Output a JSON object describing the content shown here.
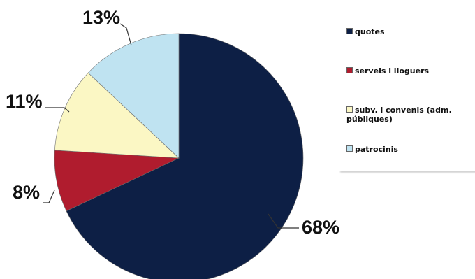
{
  "chart_data": {
    "type": "pie",
    "categories": [
      "quotes",
      "serveis i lloguers",
      "subv. i convenis (adm. públiques)",
      "patrocinis"
    ],
    "values": [
      68,
      8,
      11,
      13
    ],
    "labels": [
      "68%",
      "8%",
      "11%",
      "13%"
    ],
    "colors": [
      "#0d1f45",
      "#b01c2e",
      "#fbf7c4",
      "#bfe3f1"
    ],
    "legend": "right"
  },
  "legend": {
    "items": [
      {
        "label": "quotes",
        "color": "#0d1f45"
      },
      {
        "label": "serveis i lloguers",
        "color": "#b01c2e"
      },
      {
        "label": "subv. i convenis (adm.\npúbliques)",
        "color": "#fbf7c4"
      },
      {
        "label": "patrocinis",
        "color": "#bfe3f1"
      }
    ]
  }
}
